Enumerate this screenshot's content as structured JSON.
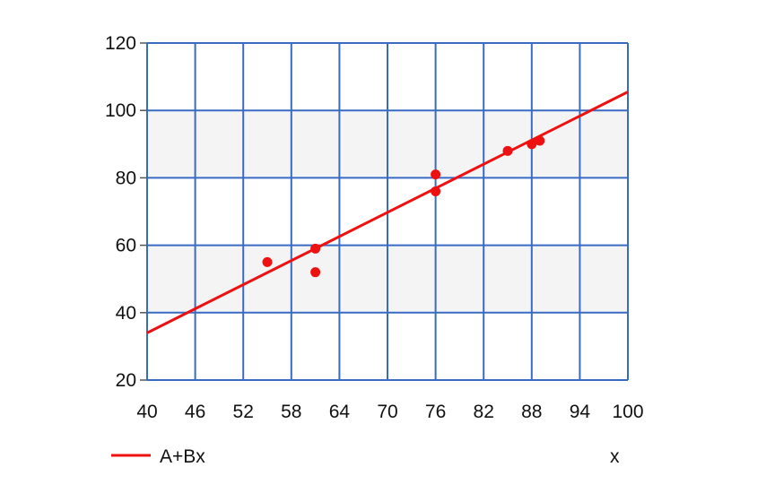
{
  "chart_data": {
    "type": "scatter",
    "title": "",
    "xlabel": "x",
    "ylabel": "",
    "xlim": [
      40,
      100
    ],
    "ylim": [
      20,
      120
    ],
    "x_ticks": [
      40,
      46,
      52,
      58,
      64,
      70,
      76,
      82,
      88,
      94,
      100
    ],
    "y_ticks": [
      20,
      40,
      60,
      80,
      100,
      120
    ],
    "grid": true,
    "grid_color": "#3a6bc4",
    "band_color": "#f4f4f4",
    "series": [
      {
        "kind": "points",
        "color": "#ee1111",
        "x": [
          55,
          61,
          61,
          76,
          76,
          85,
          88,
          89
        ],
        "y": [
          55,
          59,
          52,
          81,
          76,
          88,
          90,
          91
        ]
      },
      {
        "kind": "fit-line",
        "name": "A+Bx",
        "color": "#ee1111",
        "x": [
          40,
          100
        ],
        "y": [
          34,
          105.5
        ]
      }
    ],
    "legend": {
      "position": "bottom-left",
      "entries": [
        "A+Bx"
      ]
    }
  }
}
